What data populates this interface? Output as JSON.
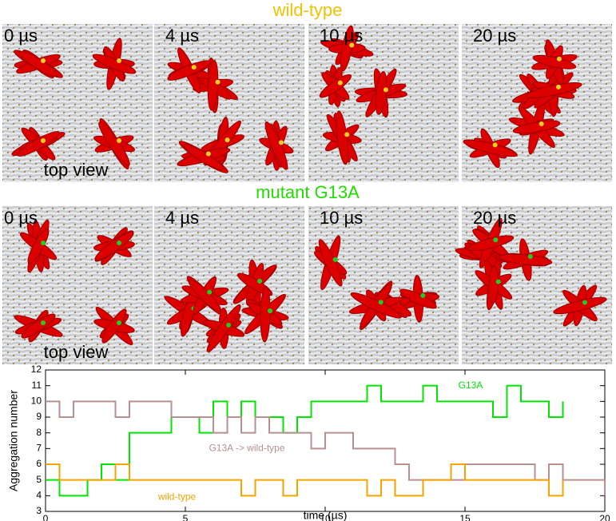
{
  "panels": [
    {
      "title": "wild-type",
      "labels": [
        "0 µs",
        "4 µs",
        "10 µs",
        "20 µs"
      ],
      "note": "top view"
    },
    {
      "title": "mutant G13A",
      "labels": [
        "0 µs",
        "4 µs",
        "10 µs",
        "20 µs"
      ],
      "note": "top view"
    }
  ],
  "chart_data": {
    "type": "line",
    "xlabel": "time (µs)",
    "ylabel": "Aggregation number",
    "x": [
      0,
      0.5,
      1,
      1.5,
      2,
      2.5,
      3,
      3.5,
      4,
      4.5,
      5,
      5.5,
      6,
      6.5,
      7,
      7.5,
      8,
      8.5,
      9,
      9.5,
      10,
      10.5,
      11,
      11.5,
      12,
      12.5,
      13,
      13.5,
      14,
      14.5,
      15,
      15.5,
      16,
      16.5,
      17,
      17.5,
      18,
      18.5,
      19,
      19.5,
      20
    ],
    "series": [
      {
        "name": "G13A",
        "color": "#00e600",
        "values": [
          5,
          4,
          4,
          5,
          6,
          5,
          8,
          8,
          8,
          9,
          9,
          8,
          10,
          9,
          10,
          9,
          9,
          8,
          9,
          10,
          10,
          10,
          10,
          11,
          10,
          10,
          10,
          11,
          10,
          10,
          10,
          10,
          9,
          11,
          10,
          10,
          9,
          10,
          null,
          null,
          null
        ]
      },
      {
        "name": "G13A -> wild-type",
        "color": "#b89090",
        "values": [
          10,
          9,
          10,
          10,
          10,
          9,
          10,
          10,
          10,
          9,
          9,
          9,
          8,
          9,
          8,
          9,
          8,
          8,
          8,
          7,
          8,
          8,
          7,
          7,
          7,
          6,
          5,
          5,
          5,
          5,
          6,
          6,
          6,
          6,
          6,
          5,
          6,
          5,
          5,
          5,
          4
        ]
      },
      {
        "name": "wild-type",
        "color": "#f5a300",
        "values": [
          6,
          5,
          5,
          5,
          5,
          6,
          5,
          5,
          5,
          5,
          5,
          5,
          5,
          5,
          4,
          5,
          5,
          4,
          5,
          5,
          5,
          5,
          5,
          4,
          5,
          4,
          4,
          5,
          5,
          6,
          5,
          5,
          5,
          5,
          5,
          5,
          4,
          5,
          null,
          null,
          null
        ]
      }
    ],
    "xlim": [
      0,
      20
    ],
    "xticks": [
      0,
      5,
      10,
      15,
      20
    ],
    "ylim": [
      3,
      12
    ],
    "yticks": [
      3,
      4,
      5,
      6,
      7,
      8,
      9,
      10,
      11,
      12
    ]
  }
}
